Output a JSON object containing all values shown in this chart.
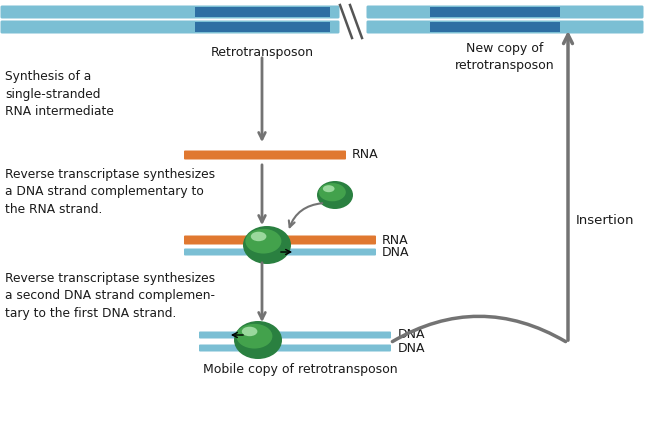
{
  "bg_color": "#ffffff",
  "dna_light_blue": "#7bbfd4",
  "dna_dark_blue": "#2e6fa3",
  "rna_orange": "#e07830",
  "enzyme_green_dark": "#2a8040",
  "enzyme_green_mid": "#4aab50",
  "enzyme_green_light": "#90d890",
  "enzyme_highlight": "#c0f0c0",
  "arrow_gray": "#737373",
  "text_color": "#1a1a1a",
  "retrotransposon_label": "Retrotransposon",
  "new_copy_label": "New copy of\nretrotransposon",
  "synthesis_label": "Synthesis of a\nsingle-stranded\nRNA intermediate",
  "rev_trans1_label": "Reverse transcriptase synthesizes\na DNA strand complementary to\nthe RNA strand.",
  "rev_trans2_label": "Reverse transcriptase synthesizes\na second DNA strand complemen-\ntary to the first DNA strand.",
  "insertion_label": "Insertion",
  "mobile_label": "Mobile copy of retrotransposon"
}
